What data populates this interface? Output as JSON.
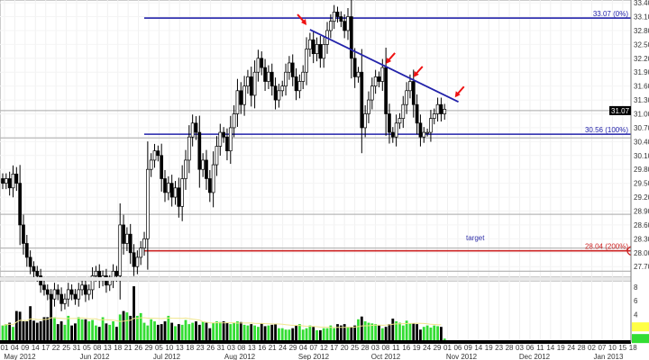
{
  "chart_data": {
    "type": "candlestick",
    "price_axis": {
      "range": [
        27.49,
        33.46
      ],
      "side": "right",
      "ticks": [
        33.4,
        33.1,
        32.8,
        32.5,
        32.2,
        31.9,
        31.6,
        31.3,
        31.0,
        30.7,
        30.4,
        30.1,
        29.8,
        29.5,
        29.2,
        28.9,
        28.6,
        28.3,
        28.0,
        27.7
      ]
    },
    "current_price": 31.07,
    "closes": [
      29.5,
      29.6,
      29.4,
      29.7,
      29.5,
      28.6,
      28.2,
      27.9,
      27.7,
      27.6,
      27.5,
      27.3,
      27.2,
      27.1,
      27.0,
      27.2,
      27.1,
      26.9,
      27.0,
      27.2,
      27.1,
      27.0,
      27.2,
      27.3,
      27.1,
      27.2,
      27.5,
      27.6,
      27.4,
      27.5,
      27.3,
      27.4,
      27.6,
      27.5,
      28.6,
      28.2,
      28.4,
      28.0,
      27.7,
      27.9,
      28.1,
      28.3,
      29.8,
      30.0,
      30.2,
      30.1,
      29.6,
      29.3,
      29.5,
      29.2,
      29.4,
      29.0,
      29.6,
      30.0,
      30.5,
      30.8,
      30.6,
      29.8,
      30.0,
      29.6,
      29.3,
      29.9,
      30.3,
      30.6,
      30.5,
      30.2,
      30.7,
      31.0,
      31.5,
      31.2,
      31.6,
      31.8,
      31.4,
      31.9,
      32.2,
      32.0,
      31.7,
      31.9,
      31.6,
      31.3,
      31.5,
      31.6,
      31.9,
      32.1,
      31.8,
      31.5,
      31.7,
      31.9,
      32.4,
      32.6,
      32.3,
      32.5,
      32.2,
      32.5,
      32.8,
      33.0,
      33.2,
      33.1,
      33.0,
      32.8,
      33.1,
      32.2,
      31.8,
      31.9,
      30.7,
      31.0,
      31.3,
      31.6,
      31.8,
      31.7,
      32.0,
      31.0,
      30.6,
      30.5,
      30.8,
      30.9,
      31.2,
      31.5,
      31.7,
      31.2,
      30.8,
      30.5,
      30.6,
      30.6,
      30.9,
      31.0,
      31.2,
      31.0,
      31.1
    ],
    "volume": [
      24,
      26,
      28,
      22,
      45,
      44,
      30,
      30,
      52,
      31,
      28,
      30,
      36,
      36,
      65,
      36,
      26,
      30,
      25,
      38,
      24,
      27,
      36,
      33,
      33,
      30,
      32,
      24,
      22,
      36,
      27,
      25,
      30,
      22,
      40,
      45,
      43,
      38,
      81,
      38,
      42,
      28,
      24,
      33,
      30,
      25,
      26,
      30,
      38,
      28,
      23,
      26,
      25,
      32,
      26,
      28,
      30,
      25,
      30,
      28,
      20,
      28,
      30,
      29,
      30,
      28,
      26,
      28,
      30,
      29,
      25,
      24,
      26,
      24,
      22,
      27,
      23,
      24,
      25,
      26,
      20,
      20,
      18,
      18,
      20,
      24,
      26,
      18,
      20,
      24,
      22,
      17,
      17,
      20,
      20,
      24,
      20,
      26,
      24,
      26,
      22,
      22,
      24,
      33,
      37,
      30,
      28,
      27,
      26,
      24,
      20,
      22,
      26,
      34,
      30,
      28,
      24,
      31,
      27,
      27,
      26,
      18,
      22,
      24,
      21,
      24,
      23,
      22,
      5
    ],
    "volume_axis": {
      "range": [
        0,
        85
      ],
      "ticks": [
        20,
        40,
        60,
        80
      ],
      "tick_labels": [
        "2",
        "4",
        "6",
        "8"
      ]
    },
    "colors": {
      "up_candle": "#ffffff",
      "down_candle": "#000000",
      "volume_up": "#33dd33",
      "volume_down": "#000000",
      "volume_ma": "#f0e68c",
      "fib_line": "#2222aa",
      "target_line": "#cc2222",
      "arrow": "#ee1111"
    },
    "fibonacci": [
      {
        "price": 33.07,
        "label": "33.07 (0%)",
        "color": "#2222aa"
      },
      {
        "price": 30.56,
        "label": "30.56 (100%)",
        "color": "#2222aa"
      },
      {
        "price": 28.04,
        "label": "28.04 (200%)",
        "color": "#cc2222"
      }
    ],
    "support_lines": [
      31.07,
      30.48,
      28.83,
      28.1,
      27.6
    ],
    "trendline": {
      "from": {
        "index": 89,
        "price": 32.82
      },
      "to": {
        "index": 132,
        "price": 31.26
      }
    },
    "arrows_at_index": [
      88,
      111,
      119,
      131
    ],
    "annotation": "target",
    "x_tick_labels": [
      "01",
      "04",
      "09",
      "14",
      "17",
      "22",
      "25",
      "31",
      "05",
      "08",
      "13",
      "18",
      "21",
      "26",
      "29",
      "05",
      "10",
      "13",
      "18",
      "23",
      "26",
      "31",
      "03",
      "08",
      "13",
      "16",
      "21",
      "24",
      "29",
      "04",
      "07",
      "12",
      "17",
      "20",
      "25",
      "28",
      "03",
      "08",
      "11",
      "16",
      "19",
      "24",
      "29",
      "01",
      "06",
      "09",
      "14",
      "19",
      "23",
      "28",
      "03",
      "06",
      "11",
      "14",
      "19",
      "24",
      "28",
      "02",
      "07",
      "10",
      "15",
      "18"
    ],
    "x_month_labels": [
      "May 2012",
      "Jun 2012",
      "Jul 2012",
      "Aug 2012",
      "Sep 2012",
      "Oct 2012",
      "Nov 2012",
      "Dec 2012",
      "Jan 2013"
    ],
    "grid": true
  }
}
